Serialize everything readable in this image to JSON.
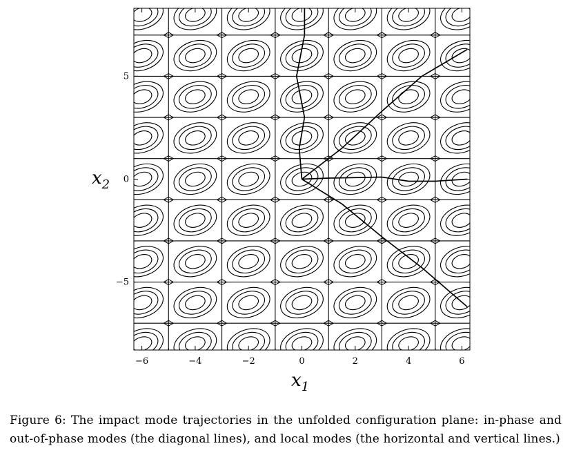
{
  "chart_data": {
    "type": "contour",
    "xlabel": "x",
    "xlabel_sub": "1",
    "ylabel": "x",
    "ylabel_sub": "2",
    "xlim": [
      -6.3,
      6.3
    ],
    "ylim": [
      -8.3,
      8.3
    ],
    "x_ticks": [
      -6,
      -4,
      -2,
      0,
      2,
      4,
      6
    ],
    "y_ticks": [
      -5,
      0,
      5
    ],
    "x_tick_labels": [
      "−6",
      "−4",
      "−2",
      "0",
      "2",
      "4",
      "6"
    ],
    "y_tick_labels": [
      "−5",
      "0",
      "5"
    ],
    "grid": false,
    "lattice_lines_x": [
      -5,
      -3,
      -1,
      1,
      3,
      5
    ],
    "lattice_lines_y": [
      -7,
      -5,
      -3,
      -1,
      1,
      3,
      5,
      7
    ],
    "cell_centers_x": [
      -6,
      -4,
      -2,
      0,
      2,
      4,
      6
    ],
    "cell_centers_y": [
      -8,
      -6,
      -4,
      -2,
      0,
      2,
      4,
      6,
      8
    ],
    "trajectories": [
      {
        "kind": "diagonal",
        "points": [
          [
            0,
            0
          ],
          [
            1.5,
            1.5
          ],
          [
            3,
            3.3
          ],
          [
            4.5,
            5.0
          ],
          [
            6.2,
            6.3
          ]
        ]
      },
      {
        "kind": "diagonal",
        "points": [
          [
            0,
            0
          ],
          [
            1.5,
            -1.2
          ],
          [
            3,
            -2.8
          ],
          [
            4.5,
            -4.3
          ],
          [
            6.2,
            -6.2
          ]
        ]
      },
      {
        "kind": "horizontal",
        "points": [
          [
            0,
            0
          ],
          [
            1,
            0.05
          ],
          [
            3,
            0.1
          ],
          [
            4,
            -0.1
          ],
          [
            5,
            -0.1
          ],
          [
            6.2,
            0
          ]
        ]
      },
      {
        "kind": "vertical",
        "points": [
          [
            0,
            0
          ],
          [
            -0.1,
            1.5
          ],
          [
            0.1,
            3
          ],
          [
            -0.2,
            5
          ],
          [
            0.1,
            7
          ],
          [
            0.1,
            8.3
          ]
        ]
      }
    ]
  },
  "caption": "Figure 6: The impact mode trajectories in the unfolded configuration plane: in-phase and out-of-phase modes (the diagonal lines), and local modes (the horizontal and vertical lines.)"
}
